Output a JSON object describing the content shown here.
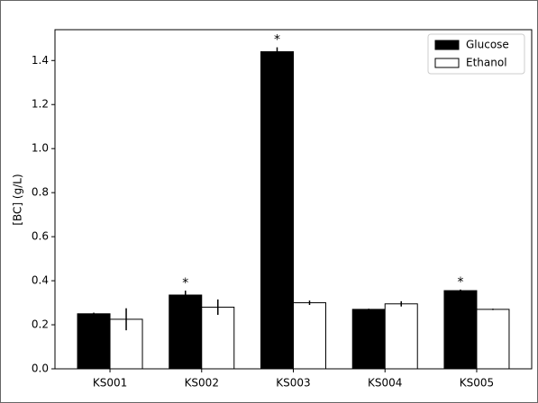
{
  "chart_data": {
    "type": "bar",
    "ylabel": "[BC] (g/L)",
    "categories": [
      "KS001",
      "KS002",
      "KS003",
      "KS004",
      "KS005"
    ],
    "series": [
      {
        "name": "Glucose",
        "color": "#000000",
        "values": [
          0.25,
          0.335,
          1.44,
          0.27,
          0.355
        ],
        "errors": [
          0.005,
          0.02,
          0.02,
          0.003,
          0.005
        ]
      },
      {
        "name": "Ethanol",
        "color": "#ffffff",
        "values": [
          0.225,
          0.28,
          0.3,
          0.295,
          0.27
        ],
        "errors": [
          0.05,
          0.035,
          0.01,
          0.012,
          0.003
        ]
      }
    ],
    "annotations": [
      {
        "text": "*",
        "category": "KS002",
        "series": "Glucose"
      },
      {
        "text": "*",
        "category": "KS003",
        "series": "Glucose"
      },
      {
        "text": "*",
        "category": "KS005",
        "series": "Glucose"
      }
    ],
    "ylim": [
      0,
      1.54
    ],
    "yticks": [
      {
        "value": 0,
        "label": "0.0"
      },
      0.2,
      0.4,
      0.6,
      0.8,
      {
        "value": 1,
        "label": "1.0"
      },
      1.2,
      1.4
    ],
    "legend": "upper right"
  }
}
